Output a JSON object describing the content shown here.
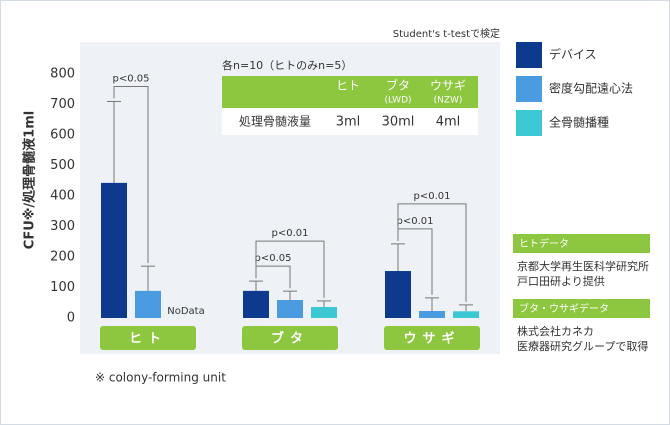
{
  "chart_data": {
    "type": "bar",
    "note": "Student's t-testで検定",
    "y_label": "CFU※/処理骨髄液1ml",
    "footnote": "※ colony-forming unit",
    "categories": [
      "ヒト",
      "ブタ",
      "ウサギ"
    ],
    "series": [
      {
        "name": "デバイス",
        "color": "#0d3a8c",
        "values": [
          443,
          89,
          154
        ],
        "errors": [
          267,
          32,
          89
        ],
        "significance_vs_first": [
          null,
          null,
          null
        ]
      },
      {
        "name": "密度勾配遠心法",
        "color": "#4b9be0",
        "values": [
          89,
          59,
          23
        ],
        "errors": [
          81,
          29,
          43
        ],
        "significance_vs_first": [
          "p<0.05",
          "p<0.05",
          "p<0.01"
        ]
      },
      {
        "name": "全骨髄播種",
        "color": "#3cc8d2",
        "values": [
          null,
          36,
          22
        ],
        "errors": [
          null,
          20,
          21
        ],
        "value_labels": [
          "NoData",
          null,
          null
        ],
        "significance_vs_first": [
          null,
          "p<0.01",
          "p<0.01"
        ]
      }
    ],
    "ylim": [
      0,
      800
    ],
    "yticks": [
      0,
      100,
      200,
      300,
      400,
      500,
      600,
      700,
      800
    ]
  },
  "table": {
    "caption": "各n=10（ヒトのみn=5）",
    "header": [
      {
        "label": "ヒト"
      },
      {
        "label": "ブタ",
        "sub": "(LWD)"
      },
      {
        "label": "ウサギ",
        "sub": "(NZW)"
      }
    ],
    "row": {
      "label": "処理骨髄液量",
      "cells": [
        "3ml",
        "30ml",
        "4ml"
      ]
    }
  },
  "notes": [
    {
      "title": "ヒトデータ",
      "lines": [
        "京都大学再生医科学研究所",
        "戸口田研より提供"
      ]
    },
    {
      "title": "ブタ・ウサギデータ",
      "lines": [
        "株式会社カネカ",
        "医療器研究グループで取得"
      ]
    }
  ]
}
